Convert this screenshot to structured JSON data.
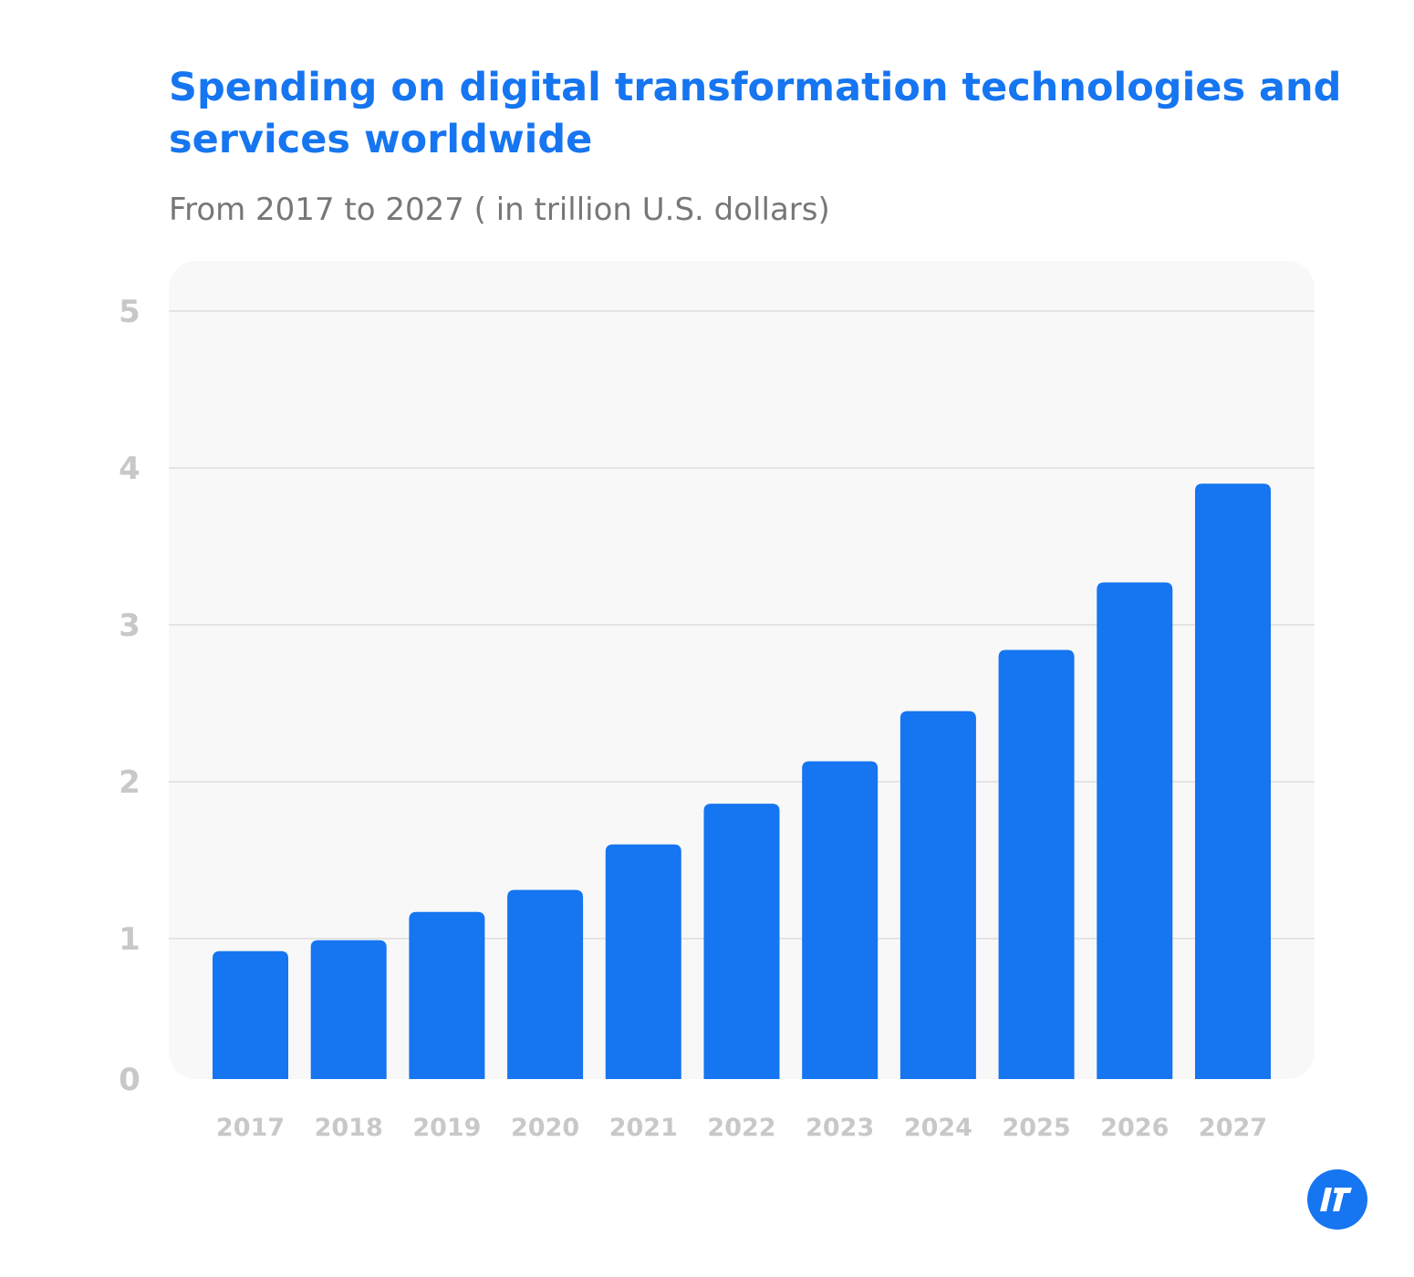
{
  "chart_data": {
    "type": "bar",
    "title": "Spending on digital transformation technologies and services worldwide",
    "subtitle": "From 2017 to 2027 ( in trillion U.S. dollars)",
    "xlabel": "",
    "ylabel": "",
    "categories": [
      "2017",
      "2018",
      "2019",
      "2020",
      "2021",
      "2022",
      "2023",
      "2024",
      "2025",
      "2026",
      "2027"
    ],
    "values": [
      0.92,
      0.99,
      1.17,
      1.31,
      1.6,
      1.86,
      2.13,
      2.45,
      2.84,
      3.27,
      3.9
    ],
    "ylim": [
      0,
      5
    ],
    "yticks": [
      "0",
      "1",
      "2",
      "3",
      "4",
      "5"
    ],
    "grid": true,
    "legend": "none",
    "bar_color": "#1675f0",
    "background_color": "#f8f8f8"
  },
  "logo": {
    "text": "IT",
    "color": "#1675f0"
  }
}
